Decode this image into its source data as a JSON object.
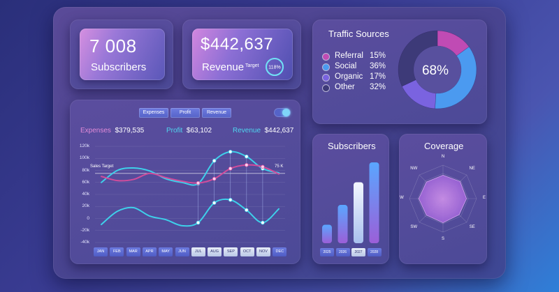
{
  "subscribers_card": {
    "value": "7 008",
    "label": "Subscribers"
  },
  "revenue_card": {
    "value": "$442,637",
    "label": "Revenue",
    "target_label": "Target",
    "target_pct": "118%",
    "target_progress": 1.0
  },
  "traffic": {
    "title": "Traffic Sources",
    "center_value": "68%",
    "items": [
      {
        "name": "Referral",
        "pct": "15%",
        "value": 15,
        "color": "#c04bb4"
      },
      {
        "name": "Social",
        "pct": "36%",
        "value": 36,
        "color": "#4b9af0"
      },
      {
        "name": "Organic",
        "pct": "17%",
        "value": 17,
        "color": "#7a63e0"
      },
      {
        "name": "Other",
        "pct": "32%",
        "value": 32,
        "color": "#3d3a78"
      }
    ]
  },
  "chart_controls": {
    "buttons": [
      "Expenses",
      "Profit",
      "Revenue"
    ],
    "toggle_on": true
  },
  "kpis": {
    "expenses_label": "Expenses",
    "expenses_value": "$379,535",
    "profit_label": "Profit",
    "profit_value": "$63,102",
    "revenue_label": "Revenue",
    "revenue_value": "$442,637"
  },
  "colors": {
    "expenses": "#d14c9c",
    "profit": "#3ed0ea",
    "revenue": "#3ed0ea",
    "expenses_label": "#e08ad8",
    "profit_label": "#4fd6f0"
  },
  "chart_data": [
    {
      "type": "line",
      "categories": [
        "JAN",
        "FEB",
        "MAR",
        "APR",
        "MAY",
        "JUN",
        "JUL",
        "AUG",
        "SEP",
        "OCT",
        "NOV",
        "DEC"
      ],
      "highlighted_categories": [
        "JUL",
        "AUG",
        "SEP",
        "OCT",
        "NOV"
      ],
      "yticks": [
        "120k",
        "100k",
        "80k",
        "60k",
        "40k",
        "20k",
        "0",
        "-20k",
        "-40k"
      ],
      "ylim": [
        -40000,
        120000
      ],
      "reference_line": {
        "label": "Sales Target",
        "value": 75000,
        "end_label": "75 K"
      },
      "series": [
        {
          "name": "Revenue",
          "values": [
            60000,
            80000,
            84000,
            79000,
            66000,
            60000,
            58000,
            96000,
            111000,
            103000,
            83000,
            76000
          ]
        },
        {
          "name": "Expenses",
          "values": [
            70000,
            63000,
            65000,
            75000,
            68000,
            62000,
            59000,
            66000,
            83000,
            89000,
            86000,
            74000
          ]
        },
        {
          "name": "Profit",
          "values": [
            -10000,
            12000,
            18000,
            4000,
            -2000,
            -12000,
            -7000,
            26000,
            31000,
            14000,
            -7000,
            16000
          ]
        }
      ]
    },
    {
      "type": "bar",
      "title": "Subscribers",
      "categories": [
        "2025",
        "2026",
        "2027",
        "2028"
      ],
      "highlighted_categories": [
        "2027"
      ],
      "values": [
        1300,
        2700,
        4300,
        5700
      ]
    },
    {
      "type": "radar",
      "title": "Coverage",
      "categories": [
        "N",
        "NE",
        "E",
        "SE",
        "S",
        "SW",
        "W",
        "NW"
      ],
      "values": [
        0.7,
        0.72,
        0.7,
        0.68,
        0.72,
        0.7,
        0.72,
        0.7
      ]
    }
  ]
}
